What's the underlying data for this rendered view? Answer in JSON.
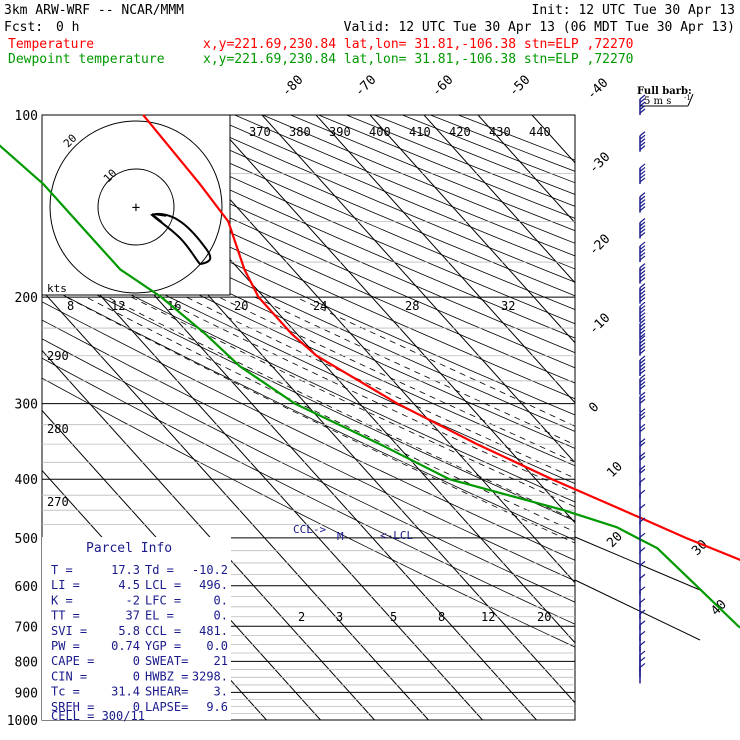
{
  "header": {
    "model": "3km ARW-WRF -- NCAR/MMM",
    "init": "Init: 12 UTC Tue 30 Apr 13",
    "fcst_label": "Fcst:",
    "fcst_value": "0 h",
    "valid": "Valid: 12 UTC Tue 30 Apr 13 (06 MDT Tue 30 Apr 13)",
    "temp_label": "Temperature",
    "dew_label": "Dewpoint temperature",
    "temp_info": "x,y=221.69,230.84   lat,lon= 31.81,-106.38   stn=ELP ,72270",
    "dew_info": "x,y=221.69,230.84   lat,lon= 31.81,-106.38   stn=ELP ,72270",
    "temp_color": "#ff0000",
    "dew_color": "#009900",
    "barb_legend_title": "Full barb:",
    "barb_legend_value": "5 m s",
    "barb_legend_exp": "-1"
  },
  "parcel_info": {
    "title": "Parcel Info",
    "rows": [
      {
        "l1": "T",
        "v1": "17.3",
        "l2": "Td",
        "v2": "-10.2"
      },
      {
        "l1": "LI",
        "v1": "4.5",
        "l2": "LCL",
        "v2": "496."
      },
      {
        "l1": "K",
        "v1": "-2",
        "l2": "LFC",
        "v2": "0."
      },
      {
        "l1": "TT",
        "v1": "37",
        "l2": "EL",
        "v2": "0."
      },
      {
        "l1": "SVI",
        "v1": "5.8",
        "l2": "CCL",
        "v2": "481."
      },
      {
        "l1": "PW",
        "v1": "0.74",
        "l2": "YGP",
        "v2": "0.0"
      },
      {
        "l1": "CAPE",
        "v1": "0",
        "l2": "SWEAT",
        "v2": "21"
      },
      {
        "l1": "CIN",
        "v1": "0",
        "l2": "HWBZ",
        "v2": "3298."
      },
      {
        "l1": "Tc",
        "v1": "31.4",
        "l2": "SHEAR",
        "v2": "3."
      },
      {
        "l1": "SREH",
        "v1": "0",
        "l2": "LAPSE",
        "v2": "9.6"
      }
    ],
    "cell": "CELL = 300/11"
  },
  "chart_data": {
    "type": "line",
    "chart_kind": "skew-T log-P sounding",
    "pressure_ticks": [
      "100",
      "200",
      "300",
      "400",
      "500",
      "600",
      "700",
      "800",
      "900",
      "1000"
    ],
    "pressure_range_hpa": [
      100,
      1000
    ],
    "log_scale": true,
    "isotherm_labels": [
      "-80",
      "-70",
      "-60",
      "-50",
      "-40",
      "-30",
      "-20",
      "-10",
      "0",
      "10",
      "20",
      "30",
      "40"
    ],
    "theta_labels": [
      "370",
      "380",
      "390",
      "400",
      "410",
      "420",
      "430",
      "440"
    ],
    "theta_labels_left": [
      "290",
      "280",
      "270"
    ],
    "mixing_ratio_labels": [
      "2",
      "3",
      "5",
      "8",
      "12",
      "20"
    ],
    "hodograph": {
      "unit_label": "kts",
      "ring_labels": [
        "10",
        "20"
      ],
      "speed_ticks": [
        "8",
        "12",
        "16",
        "20",
        "24",
        "28",
        "32"
      ]
    },
    "level_labels": [
      "LCL",
      "CCL",
      "LFC",
      "EL"
    ],
    "lcl_text": "<-LCL",
    "ccl_text": "CCL->",
    "m_text": "M",
    "series": [
      {
        "name": "Temperature",
        "color": "#ff0000",
        "points": [
          [
            100,
            -52
          ],
          [
            130,
            -53
          ],
          [
            150,
            -54
          ],
          [
            180,
            -59
          ],
          [
            200,
            -61
          ],
          [
            230,
            -61
          ],
          [
            250,
            -60
          ],
          [
            300,
            -53
          ],
          [
            350,
            -45
          ],
          [
            400,
            -37
          ],
          [
            450,
            -29
          ],
          [
            500,
            -22
          ],
          [
            600,
            -8
          ],
          [
            700,
            2
          ],
          [
            780,
            10
          ],
          [
            800,
            12
          ],
          [
            825,
            16
          ],
          [
            850,
            14.5
          ],
          [
            870,
            9
          ]
        ]
      },
      {
        "name": "Dewpoint temperature",
        "color": "#009900",
        "points": [
          [
            100,
            -85
          ],
          [
            130,
            -82
          ],
          [
            160,
            -82
          ],
          [
            180,
            -82
          ],
          [
            200,
            -79
          ],
          [
            230,
            -77
          ],
          [
            260,
            -76
          ],
          [
            300,
            -72
          ],
          [
            350,
            -63
          ],
          [
            400,
            -56
          ],
          [
            450,
            -40
          ],
          [
            480,
            -33
          ],
          [
            500,
            -31
          ],
          [
            520,
            -29
          ],
          [
            600,
            -28
          ],
          [
            700,
            -27
          ],
          [
            800,
            -22
          ],
          [
            850,
            -14.5
          ],
          [
            870,
            -11
          ]
        ]
      }
    ],
    "wind_barbs": [
      {
        "p": 100,
        "spd": 25
      },
      {
        "p": 115,
        "spd": 25
      },
      {
        "p": 130,
        "spd": 25
      },
      {
        "p": 145,
        "spd": 25
      },
      {
        "p": 160,
        "spd": 25
      },
      {
        "p": 175,
        "spd": 25
      },
      {
        "p": 190,
        "spd": 30
      },
      {
        "p": 205,
        "spd": 30
      },
      {
        "p": 220,
        "spd": 30
      },
      {
        "p": 235,
        "spd": 30
      },
      {
        "p": 250,
        "spd": 25
      },
      {
        "p": 270,
        "spd": 25
      },
      {
        "p": 290,
        "spd": 20
      },
      {
        "p": 310,
        "spd": 15
      },
      {
        "p": 330,
        "spd": 15
      },
      {
        "p": 350,
        "spd": 10
      },
      {
        "p": 370,
        "spd": 10
      },
      {
        "p": 390,
        "spd": 10
      },
      {
        "p": 410,
        "spd": 10
      },
      {
        "p": 430,
        "spd": 5
      },
      {
        "p": 450,
        "spd": 5
      },
      {
        "p": 475,
        "spd": 5
      },
      {
        "p": 500,
        "spd": 5
      },
      {
        "p": 530,
        "spd": 5
      },
      {
        "p": 560,
        "spd": 5
      },
      {
        "p": 590,
        "spd": 5
      },
      {
        "p": 620,
        "spd": 5
      },
      {
        "p": 650,
        "spd": 5
      },
      {
        "p": 680,
        "spd": 5
      },
      {
        "p": 710,
        "spd": 5
      },
      {
        "p": 740,
        "spd": 5
      },
      {
        "p": 770,
        "spd": 5
      },
      {
        "p": 800,
        "spd": 5
      },
      {
        "p": 830,
        "spd": 5
      },
      {
        "p": 850,
        "spd": 5
      },
      {
        "p": 870,
        "spd": 5
      }
    ]
  }
}
